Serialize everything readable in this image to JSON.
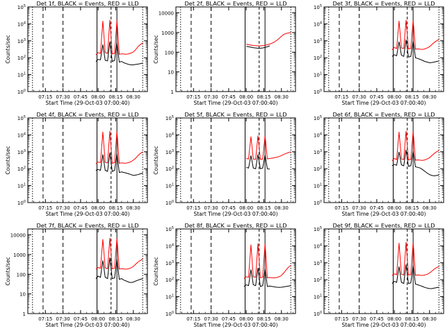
{
  "chart_data": [
    {
      "type": "line",
      "title": "Det 1f, BLACK = Events, RED = LLD",
      "xlabel": "Start Time (29-Oct-03 07:00:40)",
      "ylabel": "Counts/sec",
      "ylim": [
        1,
        100000
      ],
      "yscale": "log",
      "ytick_labels": [
        "10^0",
        "10^1",
        "10^2",
        "10^3",
        "10^4",
        "10^5"
      ],
      "xtick_labels": [
        "07:15",
        "07:30",
        "07:45",
        "08:00",
        "08:15",
        "08:30"
      ],
      "series": [
        {
          "name": "BLACK = Events",
          "color": "#000000",
          "x": [
            58,
            60,
            62,
            64,
            66,
            68,
            70,
            72,
            74,
            76,
            78,
            80,
            82,
            84,
            86,
            88,
            90,
            92,
            94,
            96,
            98
          ],
          "values": [
            60,
            80,
            75,
            600,
            70,
            65,
            900,
            60,
            70,
            800,
            55,
            60,
            50,
            45,
            40,
            38,
            38,
            40,
            42,
            45,
            48
          ]
        },
        {
          "name": "RED = LLD",
          "color": "#ff0000",
          "x": [
            58,
            60,
            62,
            64,
            66,
            68,
            70,
            72,
            74,
            76,
            78,
            80,
            82,
            84,
            86,
            88,
            90,
            92,
            94,
            96,
            98
          ],
          "values": [
            150,
            200,
            180,
            15000,
            200,
            180,
            17000,
            170,
            180,
            16000,
            160,
            170,
            165,
            160,
            170,
            190,
            220,
            300,
            450,
            600,
            750
          ]
        }
      ]
    },
    {
      "type": "line",
      "title": "Det 2f, BLACK = Events, RED = LLD",
      "xlabel": "Start Time (29-Oct-03 07:00:40)",
      "ylabel": "Counts/sec",
      "ylim": [
        1,
        20000
      ],
      "yscale": "log",
      "ytick_labels": [
        "1",
        "10",
        "100",
        "1000",
        "10000"
      ],
      "xtick_labels": [
        "07:15",
        "07:30",
        "07:45",
        "08:00",
        "08:15",
        "08:30"
      ],
      "series": [
        {
          "name": "BLACK = Events",
          "color": "#000000",
          "x": [
            60,
            62,
            64,
            66,
            68,
            70,
            72,
            74,
            76,
            78,
            80
          ],
          "values": [
            200,
            190,
            180,
            170,
            165,
            160,
            160,
            165,
            175,
            190,
            210
          ]
        },
        {
          "name": "RED = LLD",
          "color": "#ff0000",
          "x": [
            60,
            62,
            64,
            66,
            68,
            70,
            72,
            74,
            76,
            78,
            80,
            82,
            84,
            86,
            88,
            90,
            92,
            94,
            96,
            98
          ],
          "values": [
            260,
            240,
            230,
            220,
            215,
            210,
            210,
            215,
            225,
            240,
            260,
            290,
            330,
            400,
            500,
            650,
            800,
            900,
            950,
            1000
          ]
        }
      ]
    },
    {
      "type": "line",
      "title": "Det 3f, BLACK = Events, RED = LLD",
      "xlabel": "Start Time (29-Oct-03 07:00:40)",
      "ylabel": "",
      "ylim": [
        1,
        100000
      ],
      "yscale": "log",
      "ytick_labels": [
        "10^0",
        "10^1",
        "10^2",
        "10^3",
        "10^4",
        "10^5"
      ],
      "xtick_labels": [
        "07:15",
        "07:30",
        "07:45",
        "08:00",
        "08:15",
        "08:30"
      ],
      "series": [
        {
          "name": "BLACK = Events",
          "color": "#000000",
          "x": [
            58,
            60,
            62,
            64,
            66,
            68,
            70,
            72,
            74,
            76,
            78,
            80,
            82,
            84,
            86,
            88,
            90,
            92,
            94,
            96,
            98
          ],
          "values": [
            120,
            150,
            130,
            900,
            140,
            120,
            1200,
            110,
            120,
            1000,
            100,
            90,
            80,
            70,
            60,
            55,
            50,
            52,
            55,
            60,
            65
          ]
        },
        {
          "name": "RED = LLD",
          "color": "#ff0000",
          "x": [
            58,
            60,
            62,
            64,
            66,
            68,
            70,
            72,
            74,
            76,
            78,
            80,
            82,
            84,
            86,
            88,
            90,
            92,
            94,
            96,
            98
          ],
          "values": [
            300,
            400,
            350,
            15000,
            380,
            350,
            17000,
            330,
            350,
            16000,
            320,
            330,
            320,
            310,
            330,
            380,
            450,
            600,
            800,
            1000,
            1200
          ]
        }
      ]
    },
    {
      "type": "line",
      "title": "Det 4f, BLACK = Events, RED = LLD",
      "xlabel": "Start Time (29-Oct-03 07:00:40)",
      "ylabel": "Counts/sec",
      "ylim": [
        1,
        100000
      ],
      "yscale": "log",
      "ytick_labels": [
        "10^0",
        "10^1",
        "10^2",
        "10^3",
        "10^4",
        "10^5"
      ],
      "xtick_labels": [
        "07:15",
        "07:30",
        "07:45",
        "08:00",
        "08:15",
        "08:30"
      ],
      "series": [
        {
          "name": "BLACK = Events",
          "color": "#000000",
          "x": [
            58,
            60,
            62,
            64,
            66,
            68,
            70,
            72,
            74,
            76,
            78,
            80,
            82,
            84,
            86,
            88,
            90,
            92,
            94,
            96,
            98
          ],
          "values": [
            80,
            90,
            80,
            700,
            80,
            70,
            900,
            70,
            80,
            800,
            60,
            65,
            60,
            55,
            50,
            45,
            40,
            42,
            45,
            50,
            55
          ]
        },
        {
          "name": "RED = LLD",
          "color": "#ff0000",
          "x": [
            58,
            60,
            62,
            64,
            66,
            68,
            70,
            72,
            74,
            76,
            78,
            80,
            82,
            84,
            86,
            88,
            90,
            92,
            94,
            96,
            98
          ],
          "values": [
            200,
            250,
            230,
            15000,
            240,
            220,
            17000,
            210,
            230,
            16000,
            210,
            220,
            210,
            215,
            230,
            260,
            320,
            420,
            600,
            800,
            1000
          ]
        }
      ]
    },
    {
      "type": "line",
      "title": "Det 5f, BLACK = Events, RED = LLD",
      "xlabel": "Start Time (29-Oct-03 07:00:40)",
      "ylabel": "Counts/sec",
      "ylim": [
        1,
        100000
      ],
      "yscale": "log",
      "ytick_labels": [
        "10^0",
        "10^1",
        "10^2",
        "10^3",
        "10^4",
        "10^5"
      ],
      "xtick_labels": [
        "07:15",
        "07:30",
        "07:45",
        "08:00",
        "08:15",
        "08:30"
      ],
      "series": [
        {
          "name": "BLACK = Events",
          "color": "#000000",
          "x": [
            60,
            62,
            64,
            66,
            68,
            70,
            72,
            74,
            76,
            78,
            80
          ],
          "values": [
            120,
            110,
            600,
            110,
            100,
            700,
            100,
            110,
            650,
            100,
            95
          ]
        },
        {
          "name": "RED = LLD",
          "color": "#ff0000",
          "x": [
            60,
            62,
            64,
            66,
            68,
            70,
            72,
            74,
            76,
            78,
            80,
            82,
            84,
            86,
            88,
            90,
            92,
            94,
            96,
            98
          ],
          "values": [
            400,
            380,
            8000,
            370,
            360,
            9000,
            360,
            370,
            8500,
            380,
            400,
            420,
            450,
            480,
            520,
            600,
            700,
            800,
            900,
            1000
          ]
        }
      ]
    },
    {
      "type": "line",
      "title": "Det 6f, BLACK = Events, RED = LLD",
      "xlabel": "Start Time (29-Oct-03 07:00:40)",
      "ylabel": "",
      "ylim": [
        1,
        100000
      ],
      "yscale": "log",
      "ytick_labels": [
        "10^0",
        "10^1",
        "10^2",
        "10^3",
        "10^4",
        "10^5"
      ],
      "xtick_labels": [
        "07:15",
        "07:30",
        "07:45",
        "08:00",
        "08:15",
        "08:30"
      ],
      "series": [
        {
          "name": "BLACK = Events",
          "color": "#000000",
          "x": [
            58,
            60,
            62,
            64,
            66,
            68,
            70,
            72,
            74,
            76,
            78,
            80,
            82,
            84,
            86,
            88,
            90,
            92,
            94,
            96,
            98
          ],
          "values": [
            150,
            180,
            160,
            1000,
            170,
            150,
            1300,
            140,
            150,
            1100,
            130,
            120,
            110,
            90,
            70,
            55,
            45,
            40,
            38,
            40,
            42
          ]
        },
        {
          "name": "RED = LLD",
          "color": "#ff0000",
          "x": [
            58,
            60,
            62,
            64,
            66,
            68,
            70,
            72,
            74,
            76,
            78,
            80,
            82,
            84,
            86,
            88,
            90,
            92,
            94,
            96,
            98
          ],
          "values": [
            300,
            400,
            350,
            15000,
            380,
            350,
            17000,
            330,
            350,
            16000,
            320,
            330,
            320,
            310,
            330,
            380,
            450,
            600,
            800,
            1000,
            1200
          ]
        }
      ]
    },
    {
      "type": "line",
      "title": "Det 7f, BLACK = Events, RED = LLD",
      "xlabel": "Start Time (29-Oct-03 07:00:40)",
      "ylabel": "Counts/sec",
      "ylim": [
        1,
        20000
      ],
      "yscale": "log",
      "ytick_labels": [
        "1",
        "10",
        "100",
        "1000",
        "10000"
      ],
      "xtick_labels": [
        "07:15",
        "07:30",
        "07:45",
        "08:00",
        "08:15",
        "08:30"
      ],
      "series": [
        {
          "name": "BLACK = Events",
          "color": "#000000",
          "x": [
            58,
            60,
            62,
            64,
            66,
            68,
            70,
            72,
            74,
            76,
            78,
            80,
            82,
            84,
            86,
            88,
            90,
            92,
            94,
            96,
            98
          ],
          "values": [
            60,
            80,
            70,
            500,
            70,
            60,
            700,
            60,
            65,
            600,
            55,
            60,
            50,
            45,
            40,
            38,
            40,
            45,
            50,
            55,
            60
          ]
        },
        {
          "name": "RED = LLD",
          "color": "#ff0000",
          "x": [
            58,
            60,
            62,
            64,
            66,
            68,
            70,
            72,
            74,
            76,
            78,
            80,
            82,
            84,
            86,
            88,
            90,
            92,
            94,
            96,
            98
          ],
          "values": [
            180,
            220,
            200,
            6000,
            210,
            190,
            7000,
            190,
            200,
            6500,
            185,
            190,
            185,
            180,
            190,
            210,
            250,
            320,
            420,
            500,
            600
          ]
        }
      ]
    },
    {
      "type": "line",
      "title": "Det 8f, BLACK = Events, RED = LLD",
      "xlabel": "Start Time (29-Oct-03 07:00:40)",
      "ylabel": "Counts/sec",
      "ylim": [
        1,
        100000
      ],
      "yscale": "log",
      "ytick_labels": [
        "10^0",
        "10^1",
        "10^2",
        "10^3",
        "10^4",
        "10^5"
      ],
      "xtick_labels": [
        "07:15",
        "07:30",
        "07:45",
        "08:00",
        "08:15",
        "08:30"
      ],
      "series": [
        {
          "name": "BLACK = Events",
          "color": "#000000",
          "x": [
            58,
            60,
            62,
            64,
            66,
            68,
            70,
            72,
            74,
            76,
            78,
            80,
            82,
            84,
            86,
            88,
            90,
            92,
            94,
            96,
            98
          ],
          "values": [
            40,
            50,
            45,
            400,
            50,
            45,
            500,
            40,
            45,
            450,
            40,
            42,
            40,
            38,
            36,
            35,
            36,
            38,
            40,
            42,
            45
          ]
        },
        {
          "name": "RED = LLD",
          "color": "#ff0000",
          "x": [
            58,
            60,
            62,
            64,
            66,
            68,
            70,
            72,
            74,
            76,
            78,
            80,
            82,
            84,
            86,
            88,
            90,
            92,
            94,
            96,
            98
          ],
          "values": [
            120,
            150,
            140,
            12000,
            150,
            140,
            14000,
            130,
            140,
            13000,
            130,
            135,
            130,
            128,
            135,
            150,
            180,
            250,
            380,
            550,
            700
          ]
        }
      ]
    },
    {
      "type": "line",
      "title": "Det 9f, BLACK = Events, RED = LLD",
      "xlabel": "Start Time (29-Oct-03 07:00:40)",
      "ylabel": "",
      "ylim": [
        1,
        100000
      ],
      "yscale": "log",
      "ytick_labels": [
        "10^0",
        "10^1",
        "10^2",
        "10^3",
        "10^4",
        "10^5"
      ],
      "xtick_labels": [
        "07:15",
        "07:30",
        "07:45",
        "08:00",
        "08:15",
        "08:30"
      ],
      "series": [
        {
          "name": "BLACK = Events",
          "color": "#000000",
          "x": [
            58,
            60,
            62,
            64,
            66,
            68,
            70,
            72,
            74,
            76,
            78,
            80,
            82,
            84,
            86,
            88,
            90,
            92,
            94,
            96,
            98
          ],
          "values": [
            60,
            80,
            70,
            600,
            70,
            60,
            800,
            60,
            65,
            700,
            55,
            50,
            45,
            40,
            35,
            32,
            30,
            30,
            32,
            34,
            36
          ]
        },
        {
          "name": "RED = LLD",
          "color": "#ff0000",
          "x": [
            58,
            60,
            62,
            64,
            66,
            68,
            70,
            72,
            74,
            76,
            78,
            80,
            82,
            84,
            86,
            88,
            90,
            92,
            94,
            96,
            98
          ],
          "values": [
            180,
            220,
            200,
            15000,
            210,
            190,
            17000,
            190,
            200,
            16000,
            185,
            190,
            185,
            180,
            190,
            210,
            250,
            320,
            420,
            520,
            600
          ]
        }
      ]
    }
  ]
}
